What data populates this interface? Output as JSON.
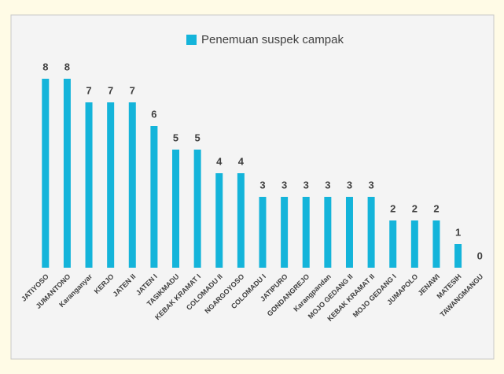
{
  "chart_data": {
    "type": "bar",
    "legend": "Penemuan suspek campak",
    "categories": [
      "JATIYOSO",
      "JUMANTONO",
      "Karanganyar",
      "KERJO",
      "JATEN II",
      "JATEN I",
      "TASIKMADU",
      "KEBAK KRAMAT I",
      "COLOMADU II",
      "NGARGOYOSO",
      "COLOMADU I",
      "JATIPURO",
      "GONDANGREJO",
      "Karangpandan",
      "MOJO GEDANG II",
      "KEBAK KRAMAT II",
      "MOJO GEDANG I",
      "JUMAPOLO",
      "JENAWI",
      "MATESIH",
      "TAWANGMANGU"
    ],
    "values": [
      8,
      8,
      7,
      7,
      7,
      6,
      5,
      5,
      4,
      4,
      3,
      3,
      3,
      3,
      3,
      3,
      2,
      2,
      2,
      1,
      0
    ],
    "color": "#14b4da"
  }
}
